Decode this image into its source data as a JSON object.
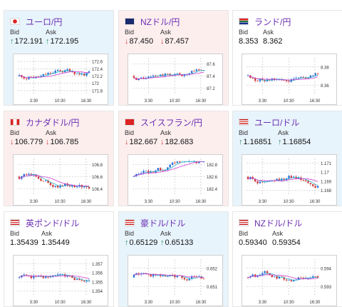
{
  "cards": [
    {
      "pair": "ユーロ/円",
      "flag": "jp",
      "bid": "172.191",
      "ask": "172.195",
      "direction": "up",
      "yticks": [
        "172.6",
        "172.4",
        "172.2",
        "172",
        "171.8"
      ],
      "xticks": [
        "3:30",
        "10:30",
        "16:30"
      ]
    },
    {
      "pair": "NZドル/円",
      "flag": "nz",
      "bid": "87.450",
      "ask": "87.457",
      "direction": "down",
      "yticks": [
        "87.6",
        "87.4",
        "87.2"
      ],
      "xticks": [
        "3:30",
        "10:30",
        "16:30"
      ]
    },
    {
      "pair": "ランド/円",
      "flag": "za",
      "bid": "8.353",
      "ask": "8.362",
      "direction": "neutral",
      "yticks": [
        "8.38",
        "8.36"
      ],
      "xticks": [
        "3:30",
        "10:30",
        "16:30"
      ]
    },
    {
      "pair": "カナダドル/円",
      "flag": "ca",
      "bid": "106.779",
      "ask": "106.785",
      "direction": "down",
      "yticks": [
        "106.8",
        "106.6",
        "106.4"
      ],
      "xticks": [
        "3:30",
        "10:30",
        "16:30"
      ]
    },
    {
      "pair": "スイスフラン/円",
      "flag": "ch",
      "bid": "182.667",
      "ask": "182.683",
      "direction": "down",
      "yticks": [
        "182.8",
        "182.6",
        "182.4"
      ],
      "xticks": [
        "3:30",
        "10:30",
        "16:30"
      ]
    },
    {
      "pair": "ユーロ/ドル",
      "flag": "us",
      "bid": "1.16851",
      "ask": "1.16854",
      "direction": "up",
      "yticks": [
        "1.171",
        "1.17",
        "1.169",
        "1.168"
      ],
      "xticks": [
        "3:30",
        "10:30",
        "16:30"
      ]
    },
    {
      "pair": "英ポンド/ドル",
      "flag": "us",
      "bid": "1.35439",
      "ask": "1.35449",
      "direction": "neutral",
      "yticks": [
        "1.357",
        "1.356",
        "1.355",
        "1.354"
      ],
      "xticks": [
        "3:30",
        "10:30",
        "16:30"
      ]
    },
    {
      "pair": "豪ドル/ドル",
      "flag": "us",
      "bid": "0.65129",
      "ask": "0.65133",
      "direction": "up",
      "yticks": [
        "0.652",
        "0.651"
      ],
      "xticks": [
        "3:30",
        "10:30",
        "16:30"
      ]
    },
    {
      "pair": "NZドル/ドル",
      "flag": "us",
      "bid": "0.59340",
      "ask": "0.59354",
      "direction": "neutral",
      "yticks": [
        "0.594",
        "0.593"
      ],
      "xticks": [
        "3:30",
        "10:30",
        "16:30"
      ]
    }
  ],
  "labels": {
    "bid": "Bid",
    "ask": "Ask"
  },
  "arrows": {
    "up": "↑",
    "down": "↓",
    "neutral": ""
  },
  "colors": {
    "up_bg": "#e8f4fc",
    "down_bg": "#fdeeee",
    "candle_up": "#2a6fd6",
    "candle_down": "#d23b3b",
    "ma1": "#2bb6c9",
    "ma2": "#d23bd2"
  }
}
